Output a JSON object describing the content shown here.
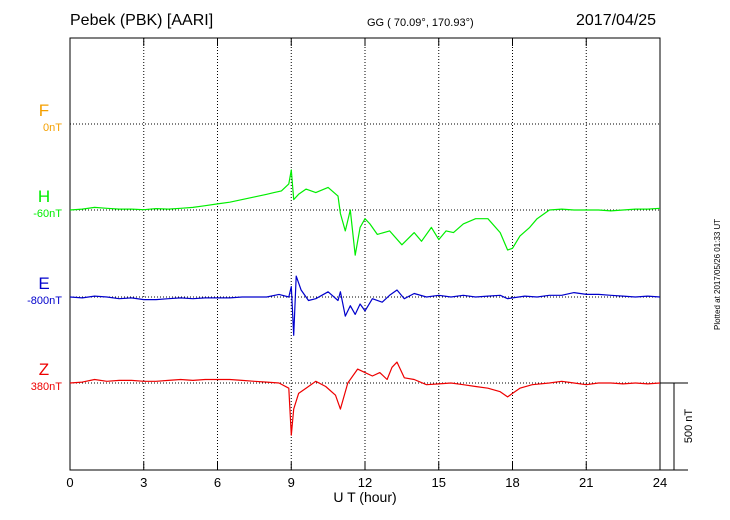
{
  "header": {
    "station": "Pebek (PBK)  [AARI]",
    "coords": "GG ( 70.09°, 170.93°)",
    "date": "2017/04/25"
  },
  "footer": {
    "plotted": "Plotted at 2017/05/26 01:33 UT"
  },
  "chart_data": {
    "type": "line",
    "title": "",
    "xlabel": "U T (hour)",
    "xlim": [
      0,
      24
    ],
    "xticks": [
      "0",
      "3",
      "6",
      "9",
      "12",
      "15",
      "18",
      "21",
      "24"
    ],
    "grid": true,
    "scale_bar": {
      "label": "500 nT",
      "value": 500
    },
    "series": [
      {
        "name": "F",
        "baseline": "0nT",
        "color": "#f5a000",
        "x": [],
        "y": []
      },
      {
        "name": "H",
        "baseline": "-60nT",
        "color": "#00ee00",
        "x": [
          0,
          0.5,
          1,
          1.5,
          2,
          2.5,
          3,
          3.5,
          4,
          4.5,
          5,
          5.5,
          6,
          6.5,
          7,
          7.5,
          8,
          8.3,
          8.6,
          8.9,
          9.0,
          9.1,
          9.3,
          9.6,
          10,
          10.5,
          10.9,
          11.0,
          11.2,
          11.4,
          11.6,
          11.8,
          12.0,
          12.2,
          12.5,
          13.0,
          13.5,
          14.0,
          14.3,
          14.7,
          15.0,
          15.3,
          15.6,
          16.0,
          16.5,
          17.0,
          17.5,
          17.8,
          18.0,
          18.3,
          18.7,
          19.0,
          19.5,
          20.0,
          20.5,
          21,
          21.5,
          22,
          22.5,
          23,
          23.5,
          24
        ],
        "y": [
          0,
          5,
          15,
          10,
          5,
          5,
          2,
          8,
          5,
          10,
          15,
          25,
          35,
          45,
          60,
          75,
          90,
          100,
          110,
          150,
          230,
          60,
          90,
          120,
          100,
          130,
          80,
          -20,
          -120,
          0,
          -260,
          -100,
          -50,
          -80,
          -140,
          -120,
          -200,
          -130,
          -180,
          -100,
          -170,
          -120,
          -130,
          -80,
          -50,
          -50,
          -130,
          -230,
          -220,
          -150,
          -100,
          -50,
          0,
          5,
          0,
          0,
          0,
          -5,
          0,
          5,
          5,
          10
        ]
      },
      {
        "name": "E",
        "baseline": "-800nT",
        "color": "#0000cc",
        "x": [
          0,
          0.5,
          1,
          1.5,
          2,
          2.5,
          3,
          3.5,
          4,
          4.5,
          5,
          5.5,
          6,
          6.5,
          7,
          7.5,
          8,
          8.5,
          8.9,
          9.0,
          9.1,
          9.2,
          9.4,
          9.7,
          10,
          10.5,
          10.9,
          11.0,
          11.2,
          11.4,
          11.6,
          11.8,
          12.0,
          12.3,
          12.7,
          13.0,
          13.3,
          13.6,
          14.0,
          14.5,
          15.0,
          15.5,
          16.0,
          16.5,
          17.0,
          17.5,
          17.8,
          18.0,
          18.5,
          19.0,
          19.5,
          20.0,
          20.5,
          21,
          21.5,
          22,
          22.5,
          23,
          23.5,
          24
        ],
        "y": [
          0,
          -5,
          5,
          0,
          -10,
          -5,
          -15,
          -15,
          -10,
          -5,
          -10,
          -5,
          -5,
          -5,
          0,
          0,
          0,
          15,
          0,
          60,
          -220,
          120,
          40,
          -20,
          -10,
          30,
          -20,
          30,
          -110,
          -50,
          -100,
          -40,
          -80,
          -10,
          -30,
          10,
          40,
          -10,
          20,
          0,
          10,
          0,
          10,
          0,
          5,
          10,
          -10,
          -5,
          5,
          0,
          10,
          10,
          25,
          15,
          15,
          10,
          5,
          0,
          5,
          0
        ]
      },
      {
        "name": "Z",
        "baseline": "380nT",
        "color": "#ee0000",
        "x": [
          0,
          0.5,
          1,
          1.5,
          2,
          2.5,
          3,
          3.5,
          4,
          4.5,
          5,
          5.5,
          6,
          6.5,
          7,
          7.5,
          8,
          8.5,
          8.9,
          9.0,
          9.1,
          9.3,
          9.6,
          10.0,
          10.4,
          10.8,
          11.0,
          11.3,
          11.7,
          12.0,
          12.3,
          12.6,
          12.9,
          13.1,
          13.3,
          13.6,
          14.0,
          14.5,
          15.0,
          15.5,
          16.0,
          16.5,
          17.0,
          17.5,
          17.8,
          18.0,
          18.3,
          18.8,
          19.5,
          20.0,
          20.5,
          21,
          21.5,
          22,
          22.5,
          23,
          23.5,
          24
        ],
        "y": [
          0,
          5,
          20,
          10,
          15,
          15,
          10,
          10,
          15,
          20,
          15,
          20,
          20,
          20,
          15,
          10,
          5,
          0,
          -30,
          -300,
          -150,
          -60,
          -30,
          10,
          -20,
          -70,
          -150,
          0,
          80,
          60,
          40,
          60,
          20,
          90,
          120,
          30,
          20,
          -10,
          -5,
          0,
          -10,
          -20,
          -30,
          -50,
          -80,
          -60,
          -30,
          -10,
          0,
          10,
          0,
          -10,
          0,
          0,
          -5,
          0,
          -5,
          0
        ]
      }
    ]
  }
}
